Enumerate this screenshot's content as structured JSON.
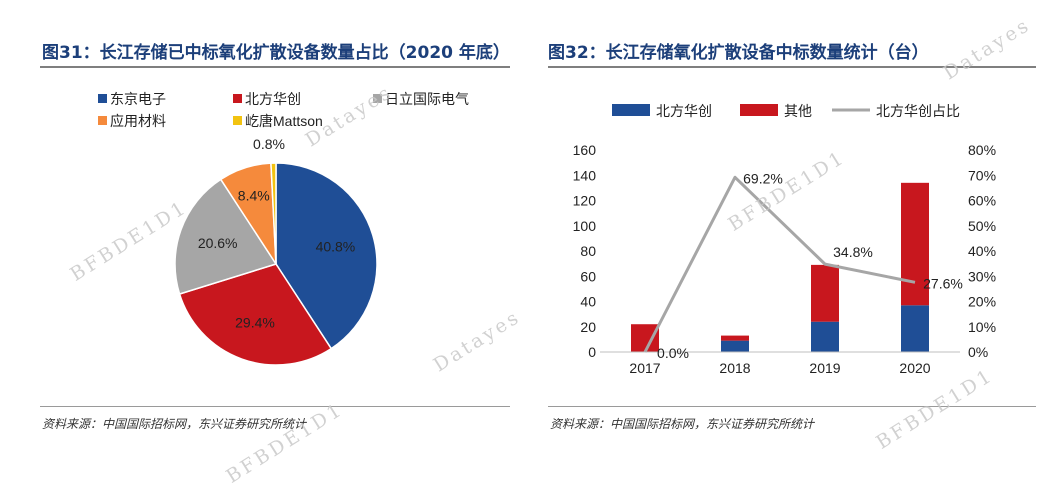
{
  "left": {
    "title": "图31：长江存储已中标氧化扩散设备数量占比（2020 年底）",
    "source": "资料来源：中国国际招标网，东兴证券研究所统计"
  },
  "right": {
    "title": "图32：长江存储氧化扩散设备中标数量统计（台）",
    "source": "资料来源：中国国际招标网，东兴证券研究所统计"
  },
  "watermarks": [
    "BFBDE1D1",
    "Datayes",
    "BFBDE1D1",
    "Datayes",
    "BFBDE1D1",
    "Datayes",
    "BFBDE1D1"
  ],
  "chart_data": [
    {
      "type": "pie",
      "title": "图31：长江存储已中标氧化扩散设备数量占比（2020 年底）",
      "slices": [
        {
          "label": "东京电子",
          "value": 40.8,
          "value_label": "40.8%",
          "color": "#1f4e96"
        },
        {
          "label": "北方华创",
          "value": 29.4,
          "value_label": "29.4%",
          "color": "#c8171e"
        },
        {
          "label": "日立国际电气",
          "value": 20.6,
          "value_label": "20.6%",
          "color": "#a6a6a6"
        },
        {
          "label": "应用材料",
          "value": 8.4,
          "value_label": "8.4%",
          "color": "#f58a3c"
        },
        {
          "label": "屹唐Mattson",
          "value": 0.8,
          "value_label": "0.8%",
          "color": "#f2c311"
        }
      ],
      "legend_position": "top"
    },
    {
      "type": "bar",
      "stacked": true,
      "title": "图32：长江存储氧化扩散设备中标数量统计（台）",
      "categories": [
        "2017",
        "2018",
        "2019",
        "2020"
      ],
      "series": [
        {
          "name": "北方华创",
          "values": [
            0,
            9,
            24,
            37
          ],
          "color": "#1f4e96"
        },
        {
          "name": "其他",
          "values": [
            22,
            4,
            45,
            97
          ],
          "color": "#c8171e"
        }
      ],
      "line_series": {
        "name": "北方华创占比",
        "values": [
          0.0,
          69.2,
          34.8,
          27.6
        ],
        "value_labels": [
          "0.0%",
          "69.2%",
          "34.8%",
          "27.6%"
        ],
        "color": "#a6a6a6",
        "axis": "right"
      },
      "y_left": {
        "min": 0,
        "max": 160,
        "ticks": [
          "0",
          "20",
          "40",
          "60",
          "80",
          "100",
          "120",
          "140",
          "160"
        ]
      },
      "y_right": {
        "min": 0,
        "max": 80,
        "ticks": [
          "0%",
          "10%",
          "20%",
          "30%",
          "40%",
          "50%",
          "60%",
          "70%",
          "80%"
        ]
      },
      "legend_position": "top",
      "grid": false
    }
  ]
}
